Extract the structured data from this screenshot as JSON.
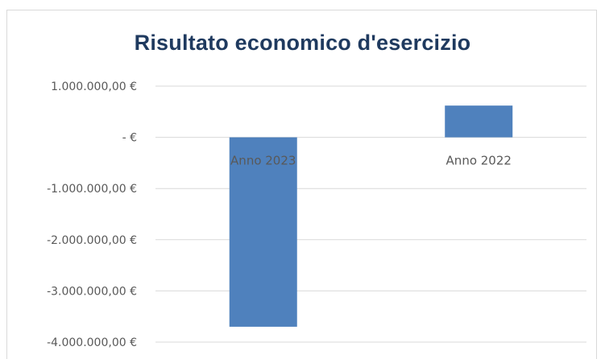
{
  "chart_data": {
    "type": "bar",
    "title": "Risultato economico d'esercizio",
    "categories": [
      "Anno 2023",
      "Anno 2022"
    ],
    "values": [
      -3700000,
      620000
    ],
    "ylim": [
      -4000000,
      1000000
    ],
    "yticks": [
      1000000,
      0,
      -1000000,
      -2000000,
      -3000000,
      -4000000
    ],
    "ytick_labels": [
      "1.000.000,00 €",
      "-  €",
      "-1.000.000,00 €",
      "-2.000.000,00 €",
      "-3.000.000,00 €",
      "-4.000.000,00 €"
    ],
    "grid": true,
    "bar_color": "#4f81bd",
    "grid_color": "#d9d9d9"
  }
}
